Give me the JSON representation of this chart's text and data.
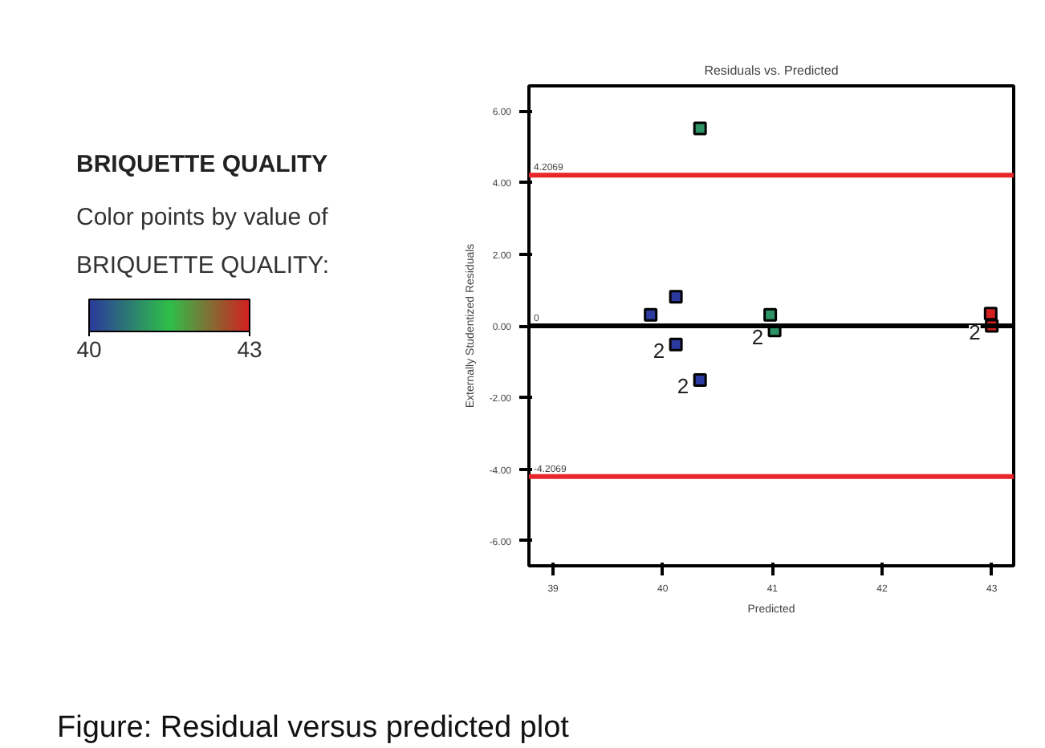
{
  "chart_data": {
    "type": "scatter",
    "title": "Residuals vs. Predicted",
    "xlabel": "Predicted",
    "ylabel": "Externally Studentized Residuals",
    "legend_title": "BRIQUETTE QUALITY",
    "clabel": "Color points by value of BRIQUETTE QUALITY:",
    "clim": [
      40,
      43
    ],
    "cticks": [
      40,
      43
    ],
    "x": [
      39.89,
      40.12,
      40.34,
      40.12,
      40.34,
      40.98,
      41.02,
      42.99,
      43.0
    ],
    "values": [
      0.31,
      0.81,
      5.51,
      -0.52,
      -1.51,
      0.31,
      -0.13,
      0.34,
      0.0
    ],
    "cvalues": [
      40,
      40,
      41,
      40,
      40,
      41,
      41,
      43,
      43
    ],
    "marker": "square",
    "grid": false,
    "xlim": [
      38.78,
      43.2
    ],
    "ylim": [
      -6.7,
      6.7
    ],
    "xticks": [
      39,
      40,
      41,
      42,
      43
    ],
    "yticks": [
      {
        "value": -6,
        "label": "-6.00"
      },
      {
        "value": -4,
        "label": "-4.00"
      },
      {
        "value": -2,
        "label": "-2.00"
      },
      {
        "value": 0,
        "label": "0.00"
      },
      {
        "value": 2,
        "label": "2.00"
      },
      {
        "value": 4,
        "label": "4.00"
      },
      {
        "value": 6,
        "label": "6.00"
      }
    ],
    "ref_lines": [
      {
        "axis": "y",
        "value": 4.2069,
        "label": "4.2069",
        "color": "#e8262b"
      },
      {
        "axis": "y",
        "value": -4.2069,
        "label": "-4.2069",
        "color": "#e8262b"
      },
      {
        "axis": "y",
        "value": 0,
        "label": "0",
        "color": "#000000"
      }
    ],
    "annotations": [
      {
        "text": "2",
        "x": 40.12,
        "y": -0.52
      },
      {
        "text": "2",
        "x": 40.34,
        "y": -1.51
      },
      {
        "text": "2",
        "x": 41.02,
        "y": -0.13
      },
      {
        "text": "2",
        "x": 43.0,
        "y": 0.0
      },
      "Figure: Residual versus predicted plot"
    ]
  }
}
